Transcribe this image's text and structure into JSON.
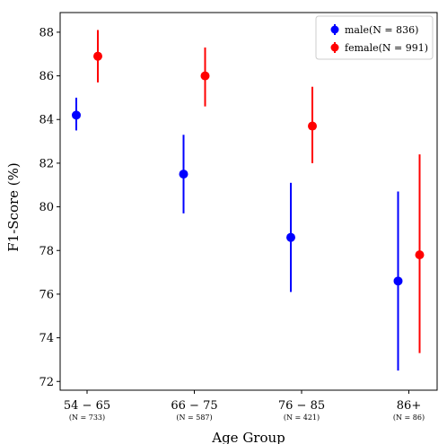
{
  "chart_data": {
    "type": "errorbar",
    "xlabel": "Age Group",
    "ylabel": "F1-Score (%)",
    "ylim": [
      71.6,
      88.9
    ],
    "yticks": [
      72,
      74,
      76,
      78,
      80,
      82,
      84,
      86,
      88
    ],
    "grid": false,
    "legend_position": "top-right",
    "categories": [
      "54 − 65",
      "66 − 75",
      "76 − 85",
      "86+"
    ],
    "category_counts": [
      "(N = 733)",
      "(N = 587)",
      "(N = 421)",
      "(N = 86)"
    ],
    "series": [
      {
        "name": "male(N = 836)",
        "color": "#0000ff",
        "values": [
          84.2,
          81.5,
          78.6,
          76.6
        ],
        "lower": [
          83.5,
          79.7,
          76.1,
          72.5
        ],
        "upper": [
          85.0,
          83.3,
          81.1,
          80.7
        ]
      },
      {
        "name": "female(N = 991)",
        "color": "#ff0000",
        "values": [
          86.9,
          86.0,
          83.7,
          77.8
        ],
        "lower": [
          85.7,
          84.6,
          82.0,
          73.3
        ],
        "upper": [
          88.1,
          87.3,
          85.5,
          82.4
        ]
      }
    ]
  }
}
